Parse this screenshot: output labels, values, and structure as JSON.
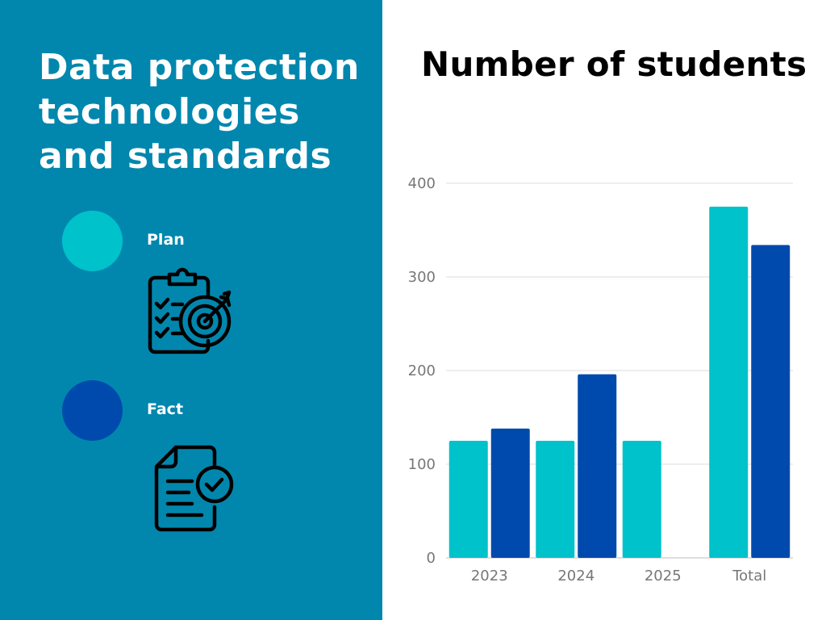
{
  "panel": {
    "title": "Data protection technologies and standards",
    "background_color": "#0187ae"
  },
  "legend": [
    {
      "label": "Plan",
      "color": "#00c2cb",
      "icon": "clipboard-target-icon"
    },
    {
      "label": "Fact",
      "color": "#004aad",
      "icon": "document-check-icon"
    }
  ],
  "chart_data": {
    "type": "bar",
    "title": "Number of students",
    "categories": [
      "2023",
      "2024",
      "2025",
      "Total"
    ],
    "series": [
      {
        "name": "Plan",
        "color": "#00c2cb",
        "values": [
          125,
          125,
          125,
          375
        ]
      },
      {
        "name": "Fact",
        "color": "#004aad",
        "values": [
          138,
          196,
          0,
          334
        ]
      }
    ],
    "ylim": [
      0,
      400
    ],
    "yticks": [
      0,
      100,
      200,
      300,
      400
    ],
    "grid": true,
    "xlabel": "",
    "ylabel": ""
  }
}
